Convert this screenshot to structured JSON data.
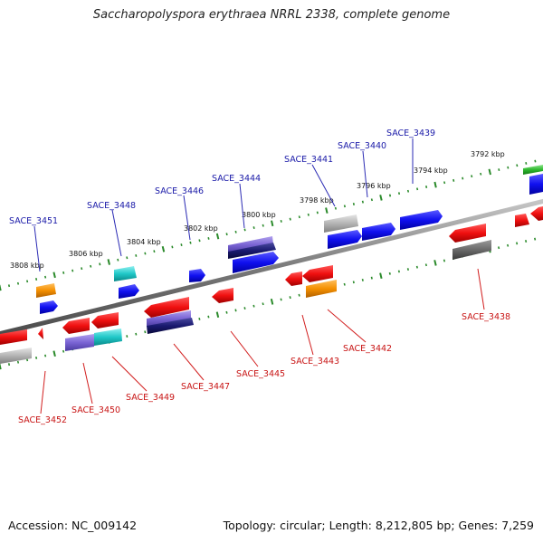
{
  "title": "Saccharopolyspora erythraea NRRL 2338, complete genome",
  "footer": {
    "accession": "Accession: NC_009142",
    "summary": "Topology: circular; Length: 8,212,805 bp; Genes: 7,259"
  },
  "colors": {
    "forward_label": "#1a1aa8",
    "reverse_label": "#c81414",
    "backbone": "#808080",
    "tick": "#2a8a2a"
  },
  "kbp_markers": [
    "3792 kbp",
    "3794 kbp",
    "3796 kbp",
    "3798 kbp",
    "3800 kbp",
    "3802 kbp",
    "3804 kbp",
    "3806 kbp",
    "3808 kbp"
  ],
  "genes_forward": [
    "SACE_3439",
    "SACE_3440",
    "SACE_3441",
    "SACE_3444",
    "SACE_3446",
    "SACE_3448",
    "SACE_3451"
  ],
  "genes_reverse": [
    "SACE_3438",
    "SACE_3442",
    "SACE_3443",
    "SACE_3445",
    "SACE_3447",
    "SACE_3449",
    "SACE_3450",
    "SACE_3452"
  ]
}
